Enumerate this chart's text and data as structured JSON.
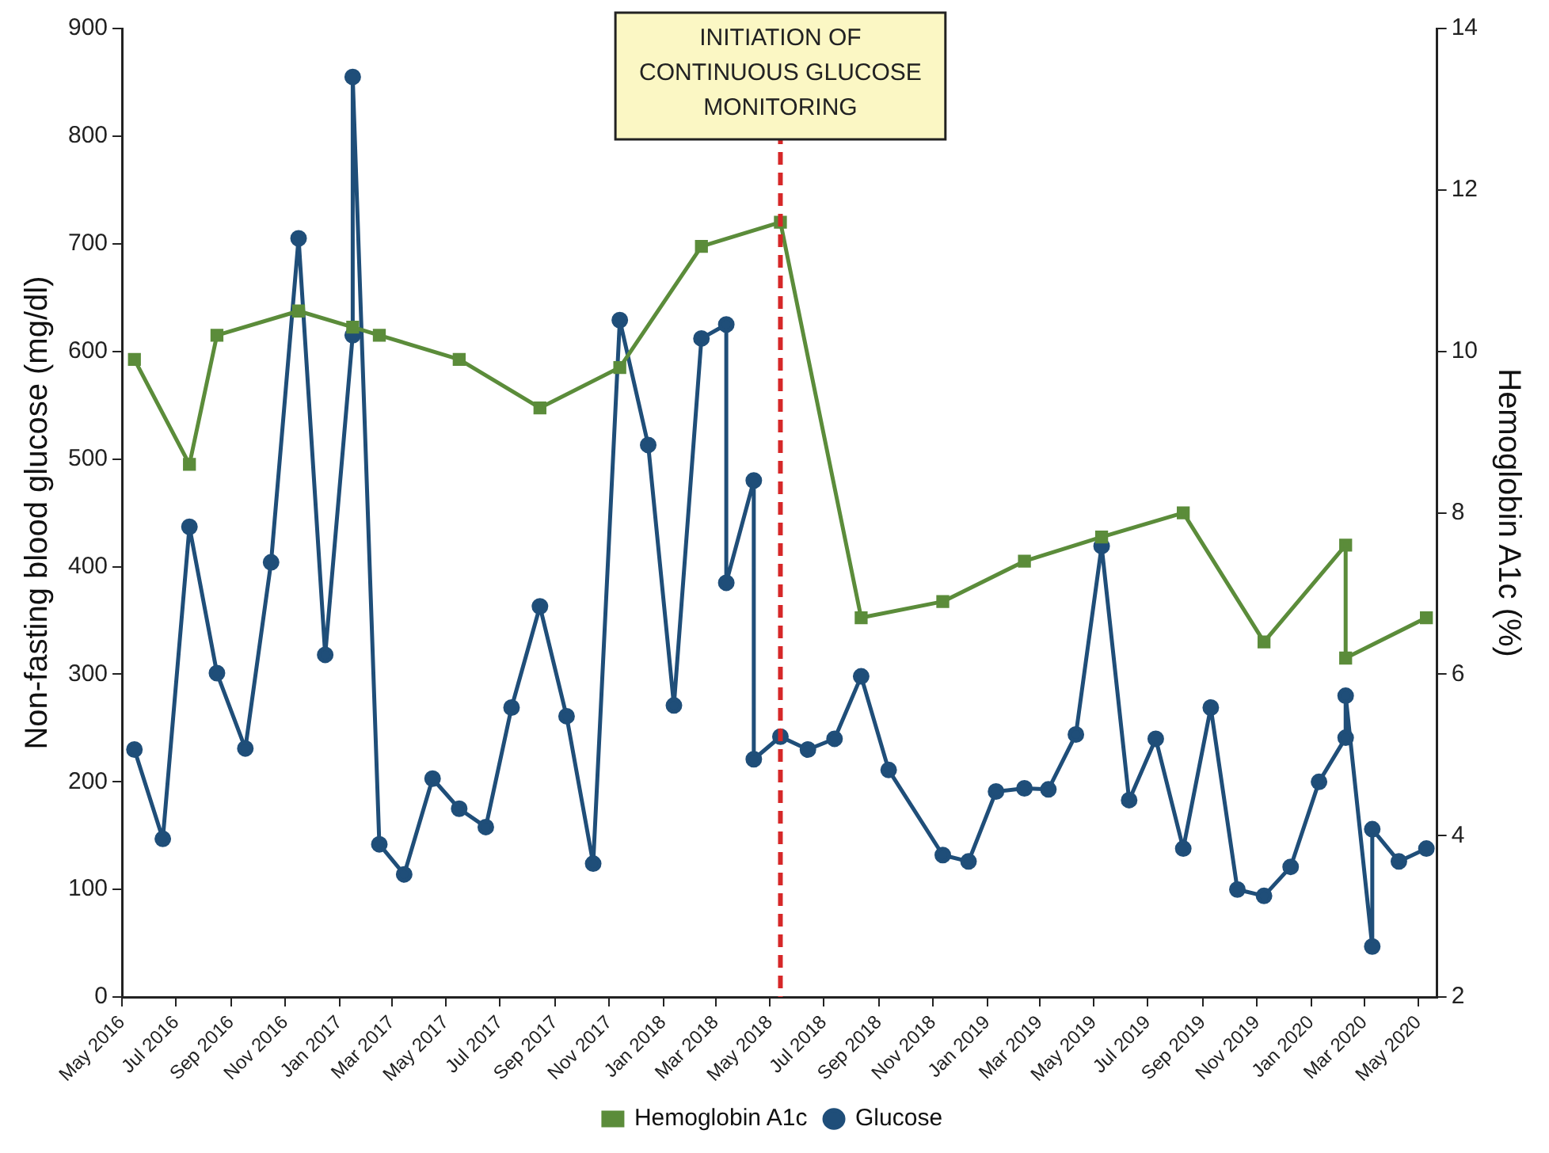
{
  "chart_data": {
    "type": "line",
    "xlabel": null,
    "ylabel": "Non-fasting blood glucose (mg/dl)",
    "y2label": "Hemoglobin A1c (%)",
    "xlim": [
      "2016-05-01",
      "2020-05-22"
    ],
    "xticks": [
      {
        "value": "2016-05",
        "label": "May 2016"
      },
      {
        "value": "2016-07",
        "label": "Jul 2016"
      },
      {
        "value": "2016-09",
        "label": "Sep 2016"
      },
      {
        "value": "2016-11",
        "label": "Nov 2016"
      },
      {
        "value": "2017-01",
        "label": "Jan 2017"
      },
      {
        "value": "2017-03",
        "label": "Mar 2017"
      },
      {
        "value": "2017-05",
        "label": "May 2017"
      },
      {
        "value": "2017-07",
        "label": "Jul 2017"
      },
      {
        "value": "2017-09",
        "label": "Sep 2017"
      },
      {
        "value": "2017-11",
        "label": "Nov 2017"
      },
      {
        "value": "2018-01",
        "label": "Jan 2018"
      },
      {
        "value": "2018-03",
        "label": "Mar 2018"
      },
      {
        "value": "2018-05",
        "label": "May 2018"
      },
      {
        "value": "2018-07",
        "label": "Jul 2018"
      },
      {
        "value": "2018-09",
        "label": "Sep 2018"
      },
      {
        "value": "2018-11",
        "label": "Nov 2018"
      },
      {
        "value": "2019-01",
        "label": "Jan 2019"
      },
      {
        "value": "2019-03",
        "label": "Mar 2019"
      },
      {
        "value": "2019-05",
        "label": "May 2019"
      },
      {
        "value": "2019-07",
        "label": "Jul 2019"
      },
      {
        "value": "2019-09",
        "label": "Sep 2019"
      },
      {
        "value": "2019-11",
        "label": "Nov 2019"
      },
      {
        "value": "2020-01",
        "label": "Jan 2020"
      },
      {
        "value": "2020-03",
        "label": "Mar 2020"
      },
      {
        "value": "2020-05",
        "label": "May 2020"
      }
    ],
    "ylim": [
      0,
      900
    ],
    "yticks": [
      0,
      100,
      200,
      300,
      400,
      500,
      600,
      700,
      800,
      900
    ],
    "y2lim": [
      2,
      14
    ],
    "y2ticks": [
      2,
      4,
      6,
      8,
      10,
      12,
      14
    ],
    "grid": false,
    "legend": "bottom",
    "line_style": "solid",
    "ref_lines": [
      {
        "axis": "x",
        "value": "2018-05-13",
        "label": "INITIATION OF CONTINUOUS GLUCOSE MONITORING",
        "color": "#d62728",
        "line_style": "dashed"
      }
    ],
    "series": [
      {
        "name": "Glucose",
        "color": "#1f4e79",
        "marker": "circle",
        "x": [
          "2016-05-15",
          "2016-06-16",
          "2016-07-16",
          "2016-08-16",
          "2016-09-17",
          "2016-10-16",
          "2016-11-16",
          "2016-12-16",
          "2017-01-16",
          "2017-01-16",
          "2017-02-15",
          "2017-03-15",
          "2017-04-16",
          "2017-05-16",
          "2017-06-15",
          "2017-07-14",
          "2017-08-15",
          "2017-09-14",
          "2017-10-14",
          "2017-11-13",
          "2017-12-15",
          "2018-01-13",
          "2018-02-13",
          "2018-03-13",
          "2018-03-13",
          "2018-04-13",
          "2018-04-13",
          "2018-05-13",
          "2018-06-13",
          "2018-07-13",
          "2018-08-12",
          "2018-09-12",
          "2018-11-12",
          "2018-12-11",
          "2019-01-11",
          "2019-02-12",
          "2019-03-11",
          "2019-04-11",
          "2019-05-10",
          "2019-06-10",
          "2019-07-10",
          "2019-08-10",
          "2019-09-10",
          "2019-10-10",
          "2019-11-09",
          "2019-12-09",
          "2020-01-10",
          "2020-02-09",
          "2020-02-09",
          "2020-03-10",
          "2020-03-10",
          "2020-04-09",
          "2020-05-10"
        ],
        "values": [
          230,
          147,
          437,
          301,
          231,
          404,
          705,
          318,
          615,
          855,
          142,
          114,
          203,
          175,
          158,
          269,
          363,
          261,
          124,
          629,
          513,
          271,
          612,
          625,
          385,
          480,
          221,
          242,
          230,
          240,
          298,
          211,
          132,
          126,
          191,
          194,
          193,
          244,
          419,
          183,
          240,
          138,
          269,
          100,
          94,
          121,
          200,
          241,
          280,
          47,
          156,
          126,
          138
        ]
      },
      {
        "name": "Hemoglobin A1c",
        "color": "#5b8c3a",
        "marker": "square",
        "axis": "y2",
        "x": [
          "2016-05-15",
          "2016-07-16",
          "2016-08-16",
          "2016-11-16",
          "2017-01-16",
          "2017-02-15",
          "2017-05-16",
          "2017-08-15",
          "2017-11-13",
          "2018-02-13",
          "2018-05-13",
          "2018-08-12",
          "2018-11-12",
          "2019-02-12",
          "2019-05-10",
          "2019-08-10",
          "2019-11-09",
          "2020-02-09",
          "2020-02-09",
          "2020-05-10"
        ],
        "values": [
          9.9,
          8.6,
          10.2,
          10.5,
          10.3,
          10.2,
          9.9,
          9.3,
          9.8,
          11.3,
          11.6,
          6.7,
          6.9,
          7.4,
          7.7,
          8.0,
          6.4,
          7.6,
          6.2,
          6.7
        ]
      }
    ]
  }
}
